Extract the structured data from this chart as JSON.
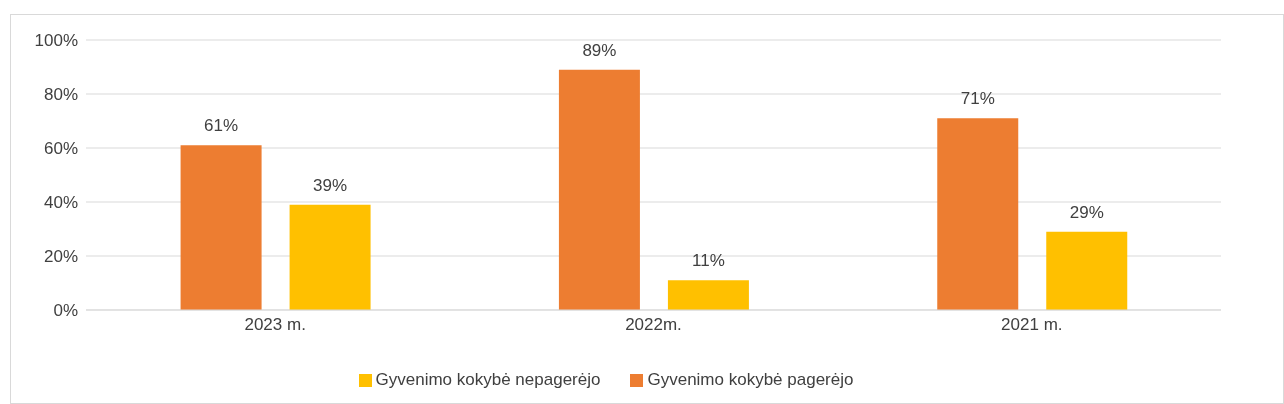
{
  "chart_data": {
    "type": "bar",
    "categories": [
      "2023 m.",
      "2022m.",
      "2021 m."
    ],
    "series": [
      {
        "name": "Gyvenimo kokybė pagerėjo",
        "color": "#ed7d31",
        "values": [
          61,
          89,
          71
        ]
      },
      {
        "name": "Gyvenimo kokybė nepagerėjo",
        "color": "#ffc000",
        "values": [
          39,
          11,
          29
        ]
      }
    ],
    "ylim": [
      0,
      100
    ],
    "yticks": [
      {
        "value": 0,
        "label": "0%"
      },
      {
        "value": 20,
        "label": "20%"
      },
      {
        "value": 40,
        "label": "40%"
      },
      {
        "value": 60,
        "label": "60%"
      },
      {
        "value": 80,
        "label": "80%"
      },
      {
        "value": 100,
        "label": "100%"
      }
    ],
    "value_labels": [
      [
        "61%",
        "89%",
        "71%"
      ],
      [
        "39%",
        "11%",
        "29%"
      ]
    ],
    "grid": "y",
    "legend": "bottom"
  }
}
